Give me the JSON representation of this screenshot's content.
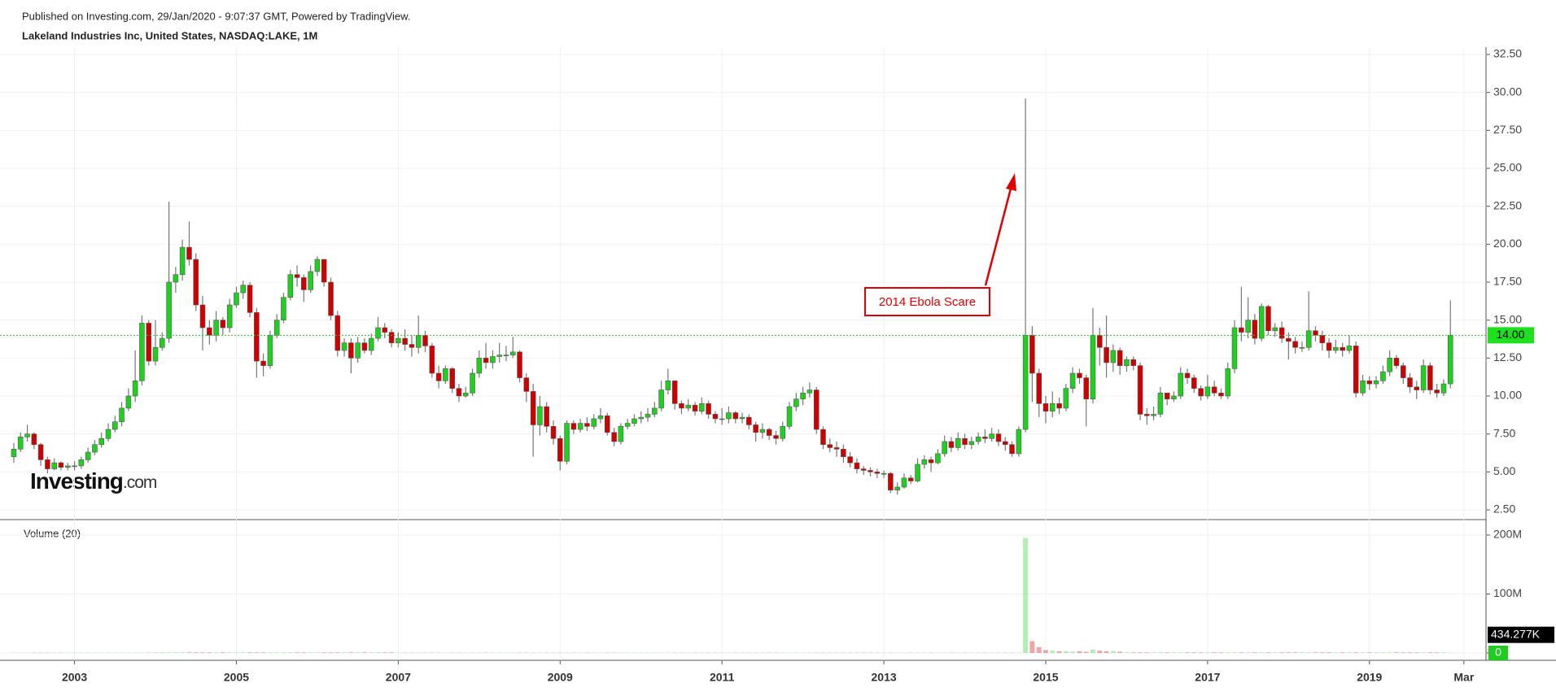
{
  "chart_data": {
    "type": "candlestick",
    "subtitle": "Published on Investing.com, 29/Jan/2020 - 9:07:37 GMT, Powered by TradingView.",
    "title": "Lakeland Industries Inc, United States, NASDAQ:LAKE, 1M",
    "annotation": "2014 Ebola Scare",
    "logo": {
      "name": "Investing",
      "suffix": ".com"
    },
    "up_color": "#1fd11f",
    "down_color": "#d10000",
    "grid": true,
    "xlim": [
      2002.2,
      2020.44
    ],
    "xticks": [
      2003,
      2005,
      2007,
      2009,
      2011,
      2013,
      2015,
      2017,
      2019,
      {
        "value": 2020.167,
        "label": "Mar"
      }
    ],
    "ylim": [
      2.5,
      32.5
    ],
    "yticks": [
      {
        "value": 2.5,
        "label": "2.50"
      },
      {
        "value": 5,
        "label": "5.00"
      },
      {
        "value": 7.5,
        "label": "7.50"
      },
      {
        "value": 10,
        "label": "10.00"
      },
      {
        "value": 12.5,
        "label": "12.50"
      },
      {
        "value": 15,
        "label": "15.00"
      },
      {
        "value": 17.5,
        "label": "17.50"
      },
      {
        "value": 20,
        "label": "20.00"
      },
      {
        "value": 22.5,
        "label": "22.50"
      },
      {
        "value": 25,
        "label": "25.00"
      },
      {
        "value": 27.5,
        "label": "27.50"
      },
      {
        "value": 30,
        "label": "30.00"
      },
      {
        "value": 32.5,
        "label": "32.50"
      }
    ],
    "last_price": {
      "value": 14,
      "label": "14.00"
    },
    "x": [
      2002.25,
      2002.333,
      2002.417,
      2002.5,
      2002.583,
      2002.667,
      2002.75,
      2002.833,
      2002.917,
      2003,
      2003.083,
      2003.167,
      2003.25,
      2003.333,
      2003.417,
      2003.5,
      2003.583,
      2003.667,
      2003.75,
      2003.833,
      2003.917,
      2004,
      2004.083,
      2004.167,
      2004.25,
      2004.333,
      2004.417,
      2004.5,
      2004.583,
      2004.667,
      2004.75,
      2004.833,
      2004.917,
      2005,
      2005.083,
      2005.167,
      2005.25,
      2005.333,
      2005.417,
      2005.5,
      2005.583,
      2005.667,
      2005.75,
      2005.833,
      2005.917,
      2006,
      2006.083,
      2006.167,
      2006.25,
      2006.333,
      2006.417,
      2006.5,
      2006.583,
      2006.667,
      2006.75,
      2006.833,
      2006.917,
      2007,
      2007.083,
      2007.167,
      2007.25,
      2007.333,
      2007.417,
      2007.5,
      2007.583,
      2007.667,
      2007.75,
      2007.833,
      2007.917,
      2008,
      2008.083,
      2008.167,
      2008.25,
      2008.333,
      2008.417,
      2008.5,
      2008.583,
      2008.667,
      2008.75,
      2008.833,
      2008.917,
      2009,
      2009.083,
      2009.167,
      2009.25,
      2009.333,
      2009.417,
      2009.5,
      2009.583,
      2009.667,
      2009.75,
      2009.833,
      2009.917,
      2010,
      2010.083,
      2010.167,
      2010.25,
      2010.333,
      2010.417,
      2010.5,
      2010.583,
      2010.667,
      2010.75,
      2010.833,
      2010.917,
      2011,
      2011.083,
      2011.167,
      2011.25,
      2011.333,
      2011.417,
      2011.5,
      2011.583,
      2011.667,
      2011.75,
      2011.833,
      2011.917,
      2012,
      2012.083,
      2012.167,
      2012.25,
      2012.333,
      2012.417,
      2012.5,
      2012.583,
      2012.667,
      2012.75,
      2012.833,
      2012.917,
      2013,
      2013.083,
      2013.167,
      2013.25,
      2013.333,
      2013.417,
      2013.5,
      2013.583,
      2013.667,
      2013.75,
      2013.833,
      2013.917,
      2014,
      2014.083,
      2014.167,
      2014.25,
      2014.333,
      2014.417,
      2014.5,
      2014.583,
      2014.667,
      2014.75,
      2014.833,
      2014.917,
      2015,
      2015.083,
      2015.167,
      2015.25,
      2015.333,
      2015.417,
      2015.5,
      2015.583,
      2015.667,
      2015.75,
      2015.833,
      2015.917,
      2016,
      2016.083,
      2016.167,
      2016.25,
      2016.333,
      2016.417,
      2016.5,
      2016.583,
      2016.667,
      2016.75,
      2016.833,
      2016.917,
      2017,
      2017.083,
      2017.167,
      2017.25,
      2017.333,
      2017.417,
      2017.5,
      2017.583,
      2017.667,
      2017.75,
      2017.833,
      2017.917,
      2018,
      2018.083,
      2018.167,
      2018.25,
      2018.333,
      2018.417,
      2018.5,
      2018.583,
      2018.667,
      2018.75,
      2018.833,
      2018.917,
      2019,
      2019.083,
      2019.167,
      2019.25,
      2019.333,
      2019.417,
      2019.5,
      2019.583,
      2019.667,
      2019.75,
      2019.833,
      2019.917,
      2020
    ],
    "open": [
      6.0,
      6.5,
      7.3,
      7.5,
      6.8,
      5.8,
      5.2,
      5.6,
      5.3,
      5.4,
      5.4,
      5.8,
      6.3,
      6.8,
      7.2,
      7.8,
      8.3,
      9.2,
      10.0,
      11.0,
      14.8,
      12.3,
      13.2,
      13.8,
      17.5,
      18.0,
      19.8,
      19.0,
      16.0,
      14.5,
      14.0,
      15.0,
      14.5,
      16.0,
      16.8,
      17.3,
      15.5,
      12.3,
      12.0,
      14.0,
      15.0,
      16.5,
      18.0,
      17.8,
      17.0,
      18.2,
      19.0,
      17.5,
      15.3,
      13.0,
      13.5,
      12.5,
      13.5,
      13.0,
      13.8,
      14.5,
      14.2,
      13.5,
      13.8,
      13.4,
      13.2,
      14.0,
      13.3,
      11.5,
      11.0,
      11.8,
      10.5,
      10.0,
      10.2,
      11.5,
      12.5,
      12.2,
      12.6,
      12.7,
      12.7,
      12.9,
      11.2,
      10.3,
      8.1,
      9.3,
      8.0,
      7.2,
      5.7,
      8.2,
      7.8,
      8.2,
      8.0,
      8.5,
      8.7,
      7.6,
      7.0,
      8.0,
      8.2,
      8.5,
      8.6,
      8.8,
      9.2,
      10.4,
      11.0,
      9.5,
      9.2,
      9.4,
      9.0,
      9.5,
      8.8,
      8.5,
      8.5,
      8.9,
      8.5,
      8.6,
      8.1,
      7.6,
      7.8,
      7.4,
      7.2,
      8.0,
      9.3,
      9.8,
      10.2,
      10.4,
      7.8,
      6.8,
      6.6,
      6.5,
      6.0,
      5.6,
      5.2,
      5.1,
      5.0,
      4.9,
      4.9,
      3.8,
      4.0,
      4.6,
      4.4,
      5.5,
      5.8,
      5.6,
      6.2,
      7.0,
      6.6,
      7.2,
      6.8,
      7.0,
      7.3,
      7.2,
      7.5,
      7.0,
      6.8,
      6.2,
      7.8,
      14.0,
      11.5,
      9.5,
      9.0,
      9.5,
      9.2,
      10.5,
      11.5,
      11.2,
      9.8,
      14.0,
      13.2,
      12.2,
      13.0,
      12.0,
      12.4,
      12.0,
      8.8,
      8.7,
      8.8,
      10.2,
      9.8,
      10.0,
      11.5,
      11.2,
      10.5,
      10.0,
      10.6,
      10.2,
      10.0,
      11.8,
      14.5,
      14.2,
      15.0,
      13.8,
      15.9,
      14.3,
      14.5,
      13.8,
      13.6,
      13.2,
      13.2,
      14.3,
      14.0,
      13.5,
      13.0,
      13.2,
      13.0,
      13.3,
      10.2,
      11.0,
      10.8,
      11.0,
      11.6,
      12.5,
      12.0,
      11.2,
      10.6,
      10.4,
      12.0,
      10.4,
      10.2,
      10.8
    ],
    "high": [
      6.9,
      7.6,
      8.1,
      7.6,
      6.9,
      6.0,
      5.9,
      5.7,
      5.6,
      5.7,
      6.0,
      6.6,
      7.1,
      7.6,
      8.2,
      8.7,
      9.6,
      10.5,
      13.0,
      15.3,
      15.0,
      15.0,
      14.2,
      22.8,
      18.5,
      20.3,
      21.5,
      19.4,
      16.6,
      15.0,
      15.6,
      15.2,
      16.4,
      17.2,
      17.6,
      17.5,
      15.8,
      12.8,
      14.3,
      15.4,
      16.8,
      18.3,
      18.6,
      18.0,
      18.6,
      19.2,
      19.0,
      17.8,
      15.6,
      13.8,
      13.8,
      13.9,
      13.8,
      14.1,
      15.2,
      14.8,
      14.4,
      14.2,
      14.4,
      14.0,
      15.3,
      14.3,
      13.5,
      12.0,
      12.0,
      11.9,
      10.8,
      10.6,
      11.8,
      13.0,
      13.5,
      13.0,
      13.5,
      13.3,
      13.9,
      13.0,
      11.5,
      10.8,
      10.0,
      9.6,
      8.4,
      7.4,
      8.4,
      8.4,
      8.5,
      8.6,
      8.8,
      9.2,
      8.9,
      7.9,
      8.2,
      8.5,
      8.8,
      9.0,
      9.2,
      9.6,
      11.0,
      11.8,
      11.0,
      9.7,
      9.8,
      9.6,
      9.9,
      9.7,
      9.0,
      9.2,
      9.3,
      9.0,
      8.9,
      8.8,
      8.3,
      8.2,
      7.9,
      7.7,
      8.3,
      9.6,
      10.2,
      10.6,
      10.9,
      10.6,
      8.0,
      7.2,
      7.0,
      6.8,
      6.3,
      5.9,
      5.4,
      5.3,
      5.2,
      5.1,
      5.0,
      4.3,
      4.9,
      4.8,
      5.9,
      6.1,
      6.0,
      6.5,
      7.4,
      7.3,
      7.6,
      7.5,
      7.3,
      7.6,
      7.8,
      7.9,
      7.8,
      7.3,
      7.0,
      8.0,
      29.6,
      14.6,
      11.8,
      10.0,
      10.3,
      9.9,
      10.8,
      11.9,
      11.8,
      11.4,
      15.8,
      14.5,
      15.3,
      13.4,
      13.2,
      12.6,
      12.6,
      12.2,
      9.2,
      9.3,
      10.6,
      10.2,
      10.3,
      11.9,
      11.8,
      11.4,
      10.7,
      11.4,
      11.0,
      10.5,
      12.2,
      15.0,
      17.2,
      16.5,
      15.4,
      16.1,
      16.0,
      14.8,
      14.9,
      14.2,
      13.9,
      13.6,
      16.9,
      14.6,
      14.3,
      13.8,
      13.7,
      13.5,
      14.0,
      13.6,
      11.4,
      11.3,
      11.3,
      12.0,
      13.0,
      12.7,
      12.2,
      11.5,
      11.0,
      12.4,
      12.2,
      10.8,
      11.1,
      16.3
    ],
    "low": [
      5.6,
      6.3,
      7.0,
      6.5,
      5.4,
      4.9,
      5.1,
      5.1,
      5.1,
      5.1,
      5.2,
      5.6,
      6.1,
      6.6,
      7.0,
      7.6,
      8.0,
      9.0,
      9.6,
      10.7,
      12.0,
      12.0,
      13.0,
      13.5,
      16.8,
      17.6,
      18.6,
      15.6,
      13.0,
      13.4,
      13.6,
      14.0,
      14.2,
      15.8,
      16.4,
      15.2,
      11.2,
      11.3,
      11.8,
      13.8,
      14.8,
      16.3,
      17.2,
      16.2,
      16.8,
      17.9,
      17.2,
      15.0,
      12.6,
      12.6,
      11.5,
      12.2,
      12.8,
      12.7,
      13.6,
      13.8,
      13.2,
      13.2,
      13.0,
      12.6,
      12.8,
      12.9,
      11.2,
      10.5,
      10.8,
      10.2,
      9.6,
      9.9,
      10.0,
      11.2,
      11.8,
      11.8,
      12.2,
      12.3,
      12.5,
      10.9,
      9.6,
      6.0,
      7.4,
      7.6,
      6.8,
      5.1,
      5.5,
      7.5,
      7.6,
      7.7,
      7.8,
      8.2,
      7.4,
      6.7,
      6.8,
      7.8,
      8.0,
      8.2,
      8.3,
      8.6,
      9.0,
      10.1,
      9.1,
      8.8,
      9.0,
      8.7,
      8.8,
      8.5,
      8.2,
      8.1,
      8.2,
      8.2,
      8.2,
      7.8,
      7.0,
      7.2,
      7.1,
      6.8,
      7.0,
      7.8,
      9.0,
      9.4,
      9.9,
      7.5,
      6.5,
      6.3,
      6.0,
      5.6,
      5.3,
      4.9,
      4.8,
      4.7,
      4.6,
      4.6,
      3.6,
      3.5,
      3.9,
      4.2,
      4.3,
      5.2,
      5.0,
      5.5,
      6.0,
      6.3,
      6.4,
      6.5,
      6.5,
      6.8,
      6.9,
      7.0,
      6.7,
      6.4,
      6.0,
      6.0,
      7.6,
      9.6,
      8.6,
      8.2,
      8.6,
      8.8,
      9.0,
      10.2,
      10.8,
      8.0,
      9.5,
      12.0,
      11.2,
      11.6,
      11.4,
      11.6,
      11.7,
      8.4,
      8.1,
      8.4,
      8.6,
      9.4,
      9.6,
      9.8,
      10.8,
      10.2,
      9.7,
      9.8,
      10.0,
      9.8,
      9.8,
      11.5,
      13.6,
      13.8,
      13.4,
      13.6,
      14.0,
      13.9,
      13.5,
      12.4,
      12.8,
      12.9,
      13.0,
      13.6,
      13.0,
      12.5,
      12.8,
      12.6,
      12.8,
      9.9,
      10.0,
      10.4,
      10.5,
      10.8,
      11.3,
      11.8,
      10.8,
      10.2,
      9.8,
      10.2,
      10.1,
      9.9,
      10.0,
      10.5
    ],
    "close": [
      6.5,
      7.3,
      7.5,
      6.8,
      5.8,
      5.2,
      5.6,
      5.3,
      5.4,
      5.4,
      5.8,
      6.3,
      6.8,
      7.2,
      7.8,
      8.3,
      9.2,
      10.0,
      11.0,
      14.8,
      12.3,
      13.2,
      13.8,
      17.5,
      18.0,
      19.8,
      19.0,
      16.0,
      14.5,
      14.0,
      15.0,
      14.5,
      16.0,
      16.8,
      17.3,
      15.5,
      12.3,
      12.0,
      14.0,
      15.0,
      16.5,
      18.0,
      17.8,
      17.0,
      18.2,
      19.0,
      17.5,
      15.3,
      13.0,
      13.5,
      12.5,
      13.5,
      13.0,
      13.8,
      14.5,
      14.2,
      13.5,
      13.8,
      13.4,
      13.2,
      14.0,
      13.3,
      11.5,
      11.0,
      11.8,
      10.5,
      10.0,
      10.2,
      11.5,
      12.5,
      12.2,
      12.6,
      12.7,
      12.7,
      12.9,
      11.2,
      10.3,
      8.1,
      9.3,
      8.0,
      7.2,
      5.7,
      8.2,
      7.8,
      8.2,
      8.0,
      8.5,
      8.7,
      7.6,
      7.0,
      8.0,
      8.2,
      8.5,
      8.6,
      8.8,
      9.2,
      10.4,
      11.0,
      9.5,
      9.2,
      9.4,
      9.0,
      9.5,
      8.8,
      8.5,
      8.5,
      8.9,
      8.5,
      8.6,
      8.1,
      7.6,
      7.8,
      7.4,
      7.2,
      8.0,
      9.3,
      9.8,
      10.2,
      10.4,
      7.8,
      6.8,
      6.6,
      6.5,
      6.0,
      5.6,
      5.2,
      5.1,
      5.0,
      4.9,
      4.9,
      3.8,
      4.0,
      4.6,
      4.4,
      5.5,
      5.8,
      5.6,
      6.2,
      7.0,
      6.6,
      7.2,
      6.8,
      7.0,
      7.3,
      7.2,
      7.5,
      7.0,
      6.8,
      6.2,
      7.8,
      14.0,
      11.5,
      9.5,
      9.0,
      9.5,
      9.2,
      10.5,
      11.5,
      11.2,
      9.8,
      14.0,
      13.2,
      12.2,
      13.0,
      12.0,
      12.4,
      12.0,
      8.8,
      8.7,
      8.8,
      10.2,
      9.8,
      10.0,
      11.5,
      11.2,
      10.5,
      10.0,
      10.6,
      10.2,
      10.0,
      11.8,
      14.5,
      14.2,
      15.0,
      13.8,
      15.9,
      14.3,
      14.5,
      13.8,
      13.6,
      13.2,
      13.2,
      14.3,
      14.0,
      13.5,
      13.0,
      13.2,
      13.0,
      13.3,
      10.2,
      11.0,
      10.8,
      11.0,
      11.6,
      12.5,
      12.0,
      11.2,
      10.6,
      10.4,
      12.0,
      10.4,
      10.2,
      10.8,
      14.0
    ],
    "volume": {
      "title": "Volume (20)",
      "ylim": [
        0,
        200
      ],
      "yticks": [
        0,
        {
          "value": 100,
          "label": "100M"
        },
        {
          "value": 200,
          "label": "200M"
        }
      ],
      "last": {
        "value": 0.434277,
        "label": "434.277K"
      },
      "values": [
        0.5,
        0.5,
        0.5,
        0.5,
        0.5,
        0.5,
        0.5,
        0.5,
        0.5,
        0.5,
        0.5,
        0.5,
        0.5,
        0.5,
        0.5,
        0.5,
        0.5,
        0.5,
        0.5,
        0.5,
        0.5,
        1,
        1,
        1,
        1,
        1,
        1,
        1,
        1,
        1,
        1,
        1,
        1,
        1,
        1,
        1,
        1,
        1,
        1,
        1,
        1,
        1,
        1,
        1,
        1,
        1,
        1,
        1,
        1,
        1,
        1,
        1,
        1,
        1,
        1,
        1,
        1,
        0.5,
        0.5,
        0.5,
        0.5,
        0.5,
        0.5,
        0.5,
        0.5,
        0.5,
        0.5,
        0.5,
        0.5,
        0.5,
        0.5,
        0.5,
        0.5,
        0.5,
        0.5,
        0.5,
        0.5,
        0.5,
        0.5,
        0.5,
        0.5,
        0.5,
        0.5,
        0.5,
        0.5,
        0.5,
        0.5,
        0.5,
        0.5,
        0.5,
        0.5,
        0.5,
        0.5,
        0.5,
        0.5,
        0.5,
        0.5,
        0.5,
        0.5,
        0.5,
        0.5,
        0.5,
        0.5,
        0.5,
        0.5,
        0.5,
        0.5,
        0.5,
        0.5,
        0.5,
        0.5,
        0.5,
        0.5,
        0.5,
        0.5,
        0.5,
        0.5,
        0.5,
        0.5,
        0.5,
        0.5,
        0.5,
        0.5,
        0.5,
        0.5,
        0.5,
        0.5,
        0.5,
        0.5,
        0.5,
        0.5,
        0.5,
        0.5,
        0.5,
        0.5,
        0.5,
        0.5,
        0.5,
        0.5,
        0.5,
        0.5,
        0.5,
        0.5,
        0.5,
        0.5,
        0.5,
        0.5,
        0.5,
        0.5,
        0.5,
        195,
        20,
        10,
        5,
        4,
        3,
        3,
        2,
        3,
        2,
        6,
        4,
        3,
        3,
        2,
        1,
        1,
        1,
        1,
        1,
        1,
        1,
        1,
        1,
        1,
        1,
        1,
        1,
        1,
        1,
        1,
        1,
        1,
        1,
        1,
        1,
        1,
        1,
        1,
        1,
        1,
        1,
        1,
        1,
        1,
        1,
        1,
        1,
        1,
        1,
        1,
        1,
        1,
        1,
        1,
        1,
        1,
        1,
        1,
        1,
        1,
        1,
        1,
        0.4
      ]
    }
  }
}
